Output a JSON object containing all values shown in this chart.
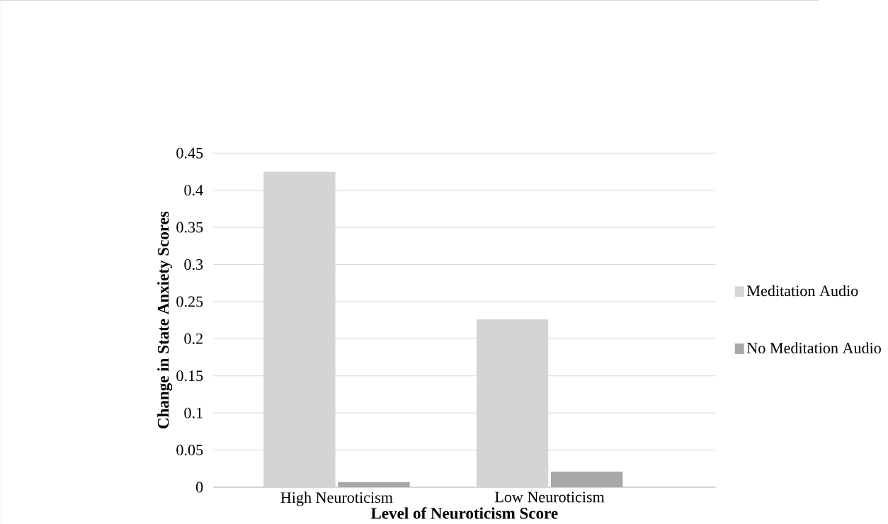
{
  "chart_data": {
    "type": "bar",
    "xlabel": "Level of Neuroticism Score",
    "ylabel": "Change in State Anxiety Scores",
    "categories": [
      "High Neuroticism",
      "Low Neuroticism"
    ],
    "series": [
      {
        "name": "Meditation Audio",
        "color": "#d4d4d4",
        "values": [
          0.425,
          0.226
        ]
      },
      {
        "name": "No Meditation Audio",
        "color": "#a8a8a8",
        "values": [
          0.007,
          0.021
        ]
      }
    ],
    "ylim": [
      0,
      0.45
    ],
    "yticks": [
      0,
      0.05,
      0.1,
      0.15,
      0.2,
      0.25,
      0.3,
      0.35,
      0.4,
      0.45
    ],
    "grid": "y",
    "legend": "right"
  }
}
